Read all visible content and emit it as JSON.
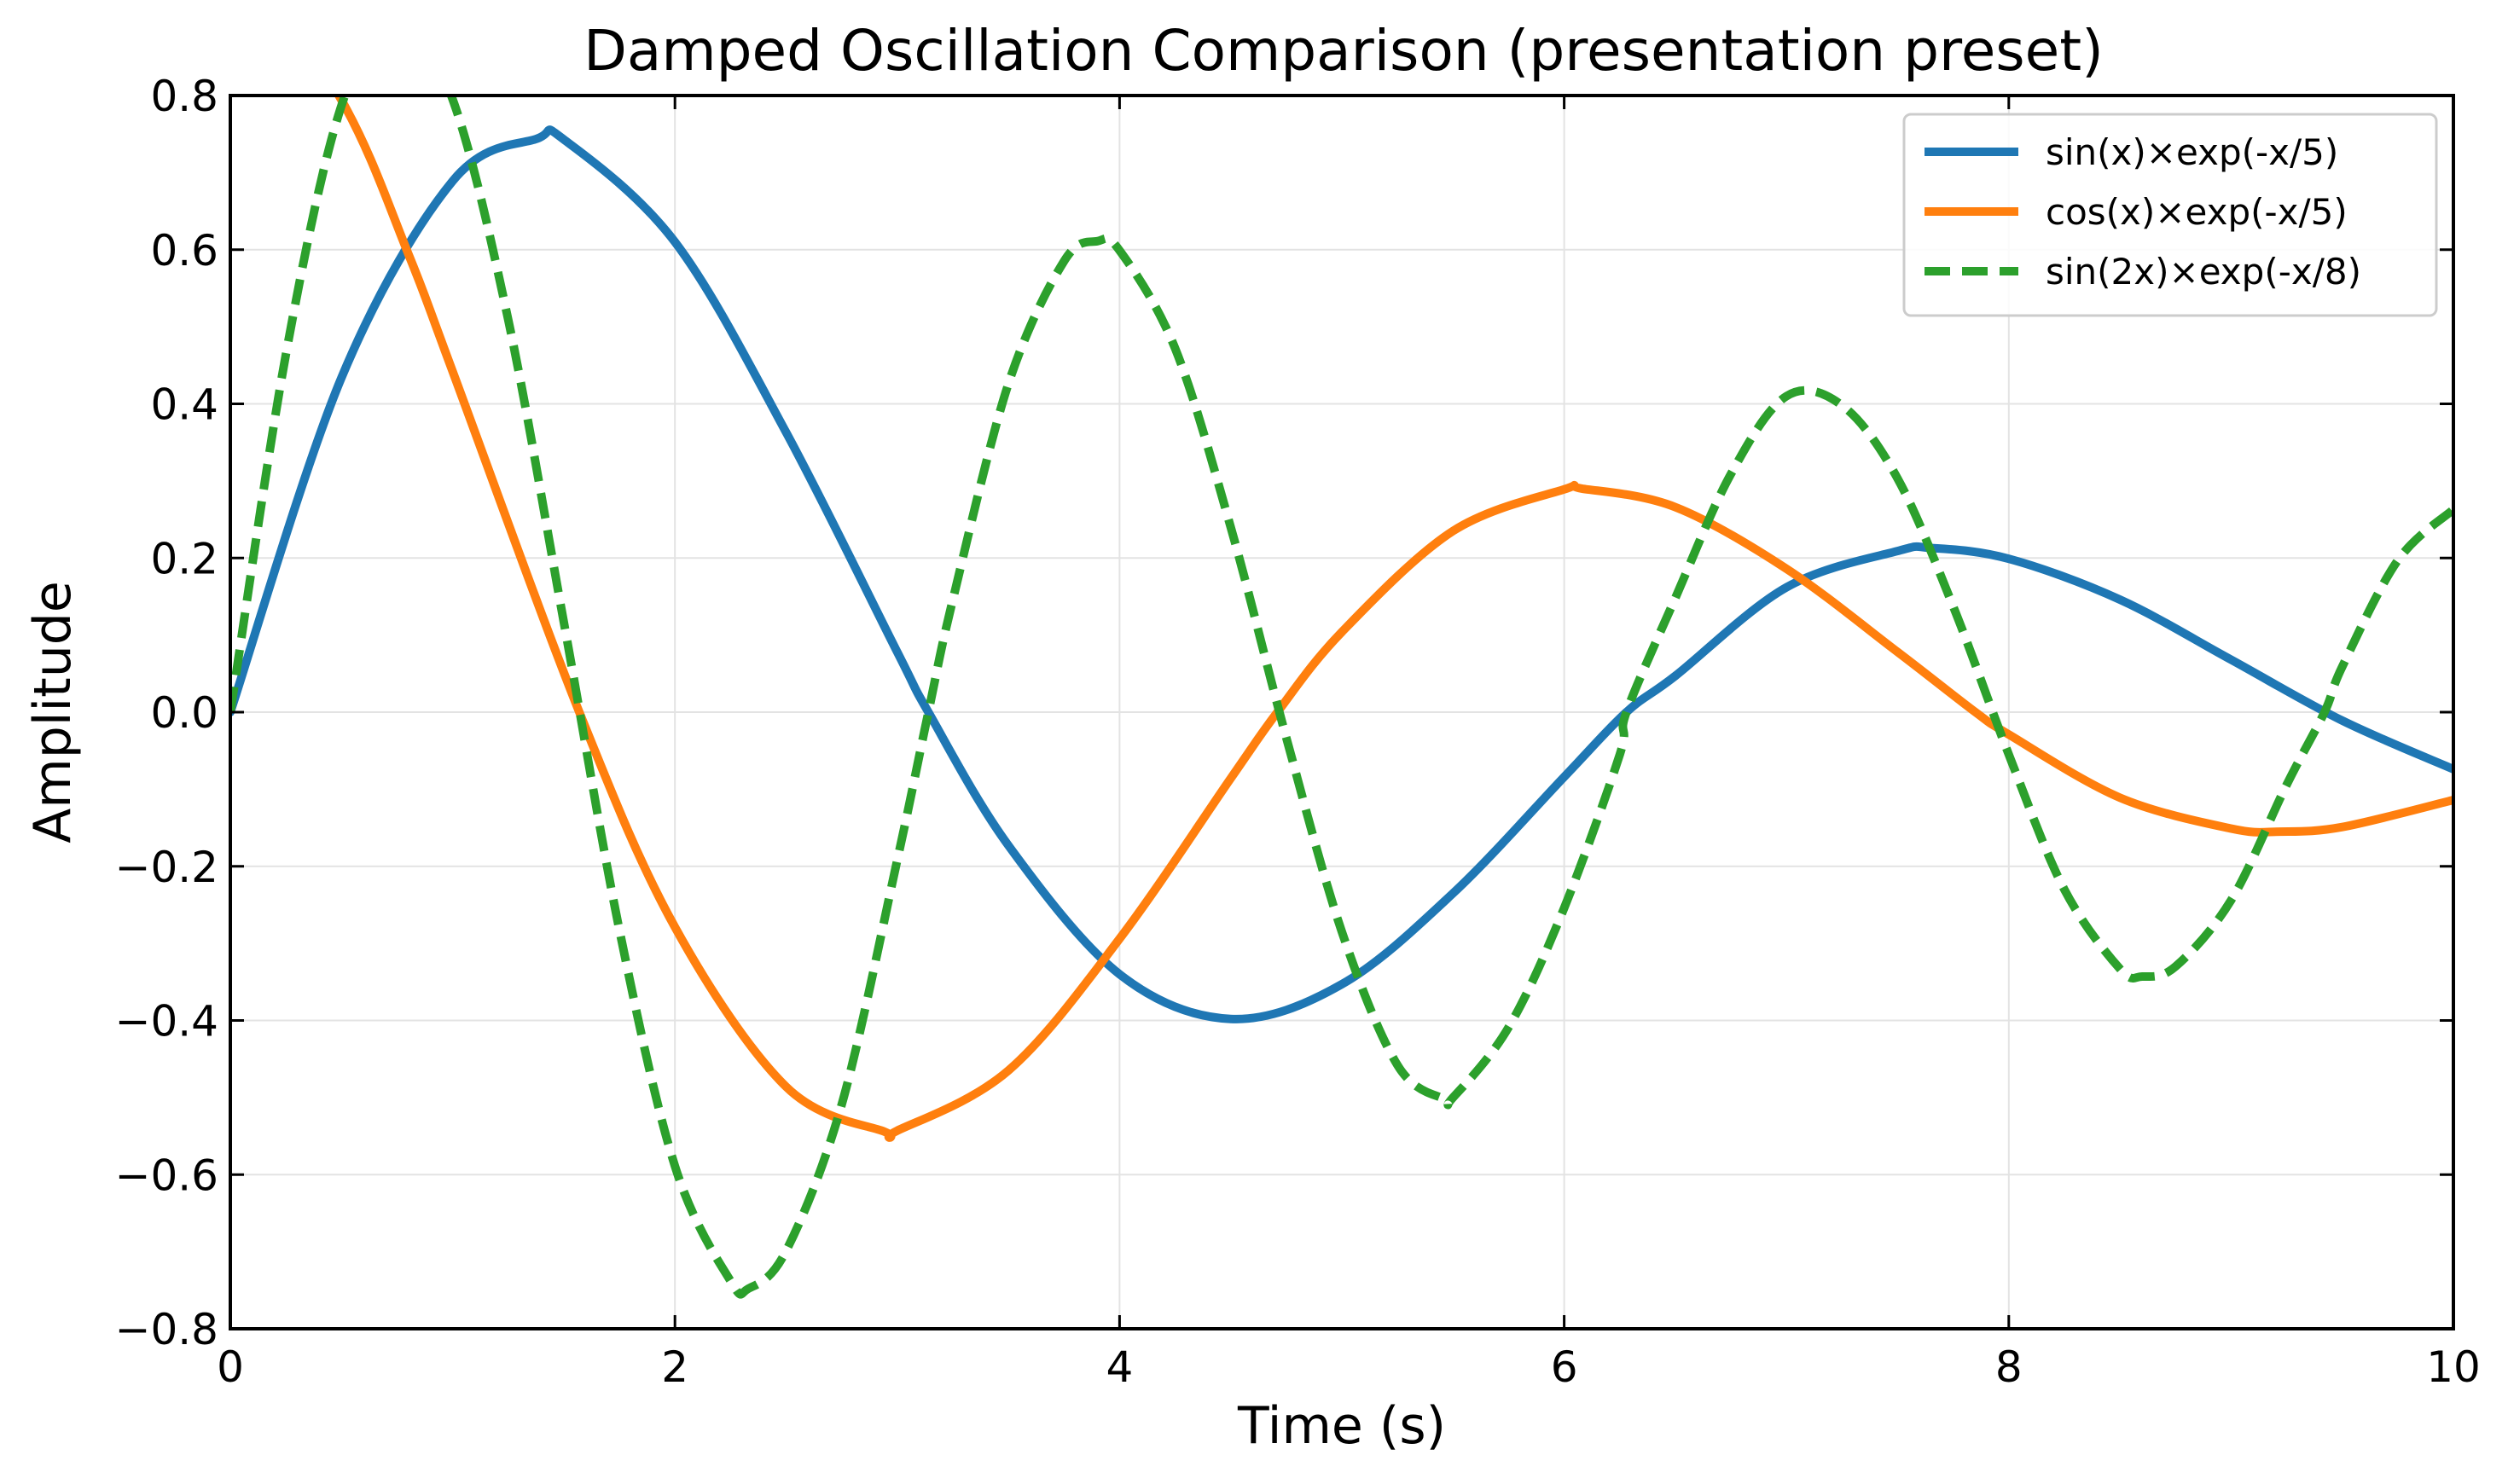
{
  "chart_data": {
    "type": "line",
    "title": "Damped Oscillation Comparison (presentation preset)",
    "xlabel": "Time (s)",
    "ylabel": "Amplitude",
    "xlim": [
      0,
      10
    ],
    "ylim": [
      -0.8,
      0.8
    ],
    "x_ticks": [
      0,
      2,
      4,
      6,
      8,
      10
    ],
    "x_tick_labels": [
      "0",
      "2",
      "4",
      "6",
      "8",
      "10"
    ],
    "y_ticks": [
      -0.8,
      -0.6,
      -0.4,
      -0.2,
      0.0,
      0.2,
      0.4,
      0.6,
      0.8
    ],
    "y_tick_labels": [
      "−0.8",
      "−0.6",
      "−0.4",
      "−0.2",
      "0.0",
      "0.2",
      "0.4",
      "0.6",
      "0.8"
    ],
    "grid": true,
    "legend_position": "top-right",
    "series": [
      {
        "name": "sin(x)×exp(-x/5)",
        "color": "#1f77b4",
        "style": "solid",
        "x": [
          0,
          0.5,
          1,
          1.38,
          1.5,
          2,
          2.5,
          3,
          3.14,
          3.5,
          4,
          4.5,
          5,
          5.5,
          6,
          6.28,
          6.5,
          7,
          7.5,
          7.65,
          8,
          8.5,
          9,
          9.5,
          10
        ],
        "y": [
          0,
          0.434,
          0.689,
          0.744,
          0.743,
          0.61,
          0.363,
          0.078,
          0.0,
          -0.173,
          -0.34,
          -0.398,
          -0.353,
          -0.235,
          -0.084,
          0.0,
          0.047,
          0.162,
          0.209,
          0.213,
          0.199,
          0.146,
          0.068,
          -0.011,
          -0.074
        ]
      },
      {
        "name": "cos(x)×exp(-x/5)",
        "color": "#ff7f0e",
        "style": "solid",
        "x": [
          0,
          0.5,
          0.8,
          1,
          1.57,
          2,
          2.5,
          2.94,
          3,
          3.5,
          4,
          4.5,
          4.71,
          5,
          5.5,
          6,
          6.08,
          6.5,
          7,
          7.5,
          7.85,
          8,
          8.5,
          9,
          9.22,
          9.5,
          10
        ],
        "y": [
          1,
          0.794,
          0.595,
          0.442,
          0.0,
          -0.279,
          -0.486,
          -0.544,
          -0.543,
          -0.465,
          -0.294,
          -0.086,
          0.0,
          0.104,
          0.235,
          0.289,
          0.29,
          0.266,
          0.186,
          0.078,
          0.0,
          -0.029,
          -0.111,
          -0.151,
          -0.155,
          -0.149,
          -0.114
        ]
      },
      {
        "name": "sin(2x)×exp(-x/8)",
        "color": "#2ca02c",
        "style": "dashed",
        "x": [
          0,
          0.25,
          0.5,
          0.75,
          1,
          1.25,
          1.5,
          1.75,
          2,
          2.25,
          2.33,
          2.5,
          2.75,
          3,
          3.14,
          3.25,
          3.5,
          3.75,
          3.9,
          4,
          4.25,
          4.5,
          4.75,
          5,
          5.25,
          5.46,
          5.5,
          5.75,
          6,
          6.25,
          6.28,
          6.5,
          6.75,
          7,
          7.25,
          7.5,
          7.75,
          8,
          8.25,
          8.5,
          8.6,
          8.75,
          9,
          9.25,
          9.42,
          9.5,
          9.75,
          10
        ],
        "y": [
          0,
          0.464,
          0.787,
          0.906,
          0.795,
          0.509,
          0.117,
          -0.282,
          -0.589,
          -0.738,
          -0.748,
          -0.699,
          -0.509,
          -0.192,
          0.0,
          0.146,
          0.426,
          0.585,
          0.611,
          0.599,
          0.472,
          0.24,
          -0.033,
          -0.285,
          -0.458,
          -0.502,
          -0.5,
          -0.409,
          -0.254,
          -0.055,
          0.0,
          0.148,
          0.309,
          0.41,
          0.398,
          0.303,
          0.137,
          -0.055,
          -0.23,
          -0.333,
          -0.343,
          -0.33,
          -0.244,
          -0.094,
          0.0,
          0.059,
          0.197,
          0.263
        ]
      }
    ]
  }
}
